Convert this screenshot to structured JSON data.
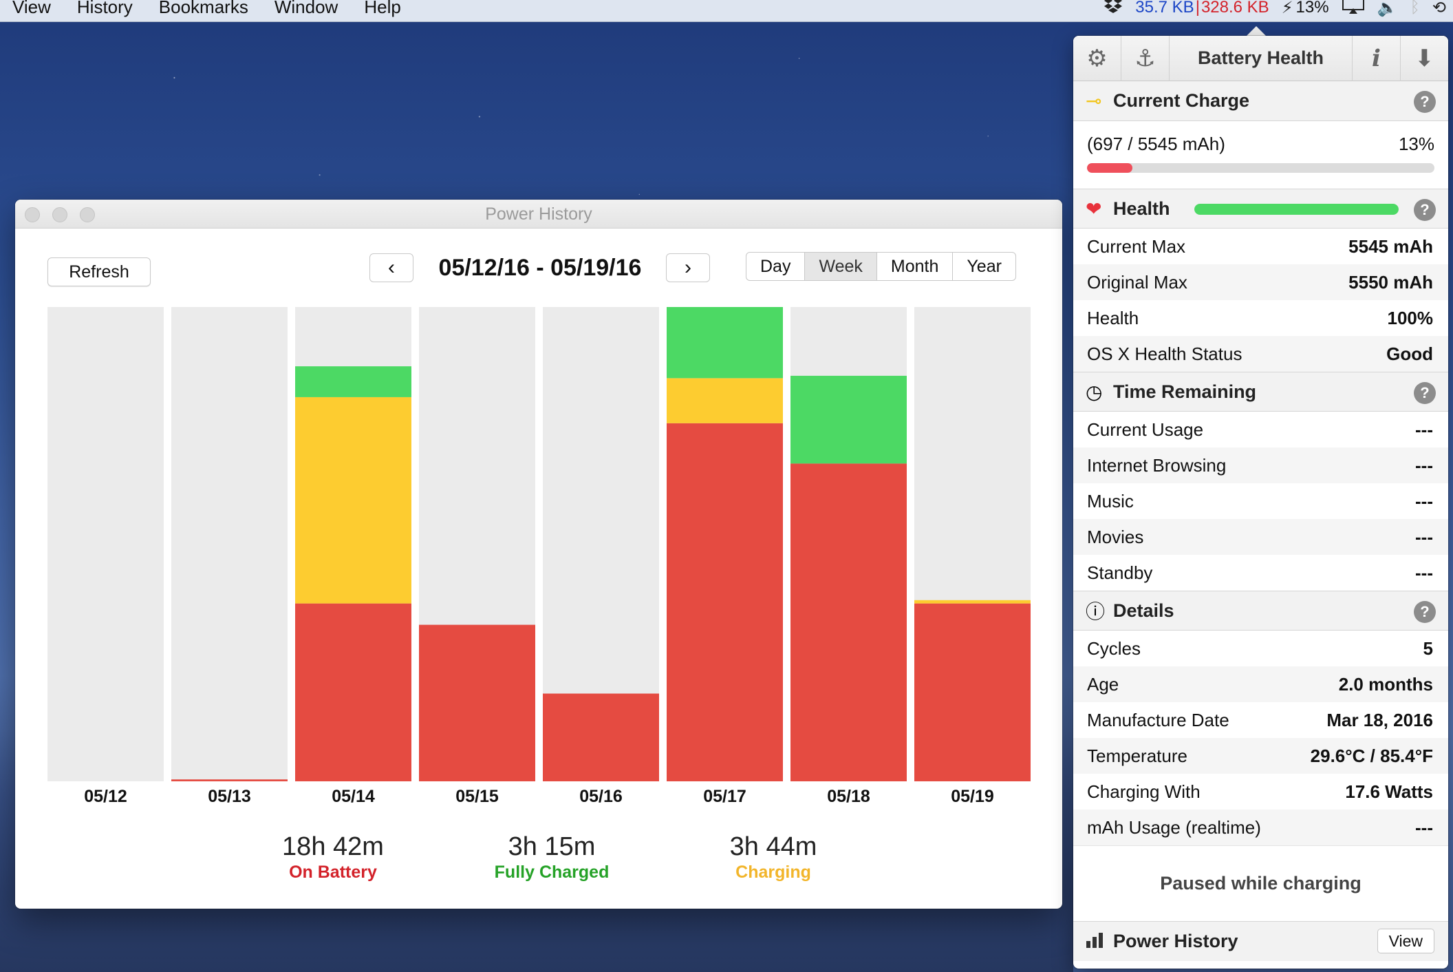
{
  "menubar": {
    "items": [
      "View",
      "History",
      "Bookmarks",
      "Window",
      "Help"
    ],
    "status": {
      "net_up": "35.7 KB",
      "separator": "|",
      "net_down": "328.6 KB",
      "battery_percent": "13%",
      "icons": [
        "dropbox-icon",
        "bolt-icon",
        "airplay-icon",
        "volume-icon",
        "bluetooth-icon",
        "time-machine-icon"
      ]
    }
  },
  "window": {
    "title": "Power History",
    "refresh_label": "Refresh",
    "prev_label": "‹",
    "next_label": "›",
    "range_label": "05/12/16 - 05/19/16",
    "periods": [
      "Day",
      "Week",
      "Month",
      "Year"
    ],
    "active_period": "Week"
  },
  "chart_data": {
    "type": "bar",
    "stacked": true,
    "categories": [
      "05/12",
      "05/13",
      "05/14",
      "05/15",
      "05/16",
      "05/17",
      "05/18",
      "05/19"
    ],
    "ylim": [
      0,
      100
    ],
    "series": [
      {
        "name": "On Battery",
        "color": "#e54b41",
        "values": [
          0,
          0.4,
          37.5,
          33,
          18.5,
          75.5,
          67,
          37.5
        ]
      },
      {
        "name": "Charging",
        "color": "#fdcc30",
        "values": [
          0,
          0,
          43.5,
          0,
          0,
          9.5,
          0,
          0.7
        ]
      },
      {
        "name": "Fully Charged",
        "color": "#4cd964",
        "values": [
          0,
          0,
          6.5,
          0,
          0,
          15,
          18.5,
          0
        ]
      }
    ],
    "background_color": "#ebebeb"
  },
  "summary": [
    {
      "duration": "18h 42m",
      "label": "On Battery",
      "color": "#d3222a"
    },
    {
      "duration": "3h 15m",
      "label": "Fully Charged",
      "color": "#25a227"
    },
    {
      "duration": "3h 44m",
      "label": "Charging",
      "color": "#f2b52a"
    }
  ],
  "panel": {
    "title": "Battery Health",
    "current_charge": {
      "title": "Current Charge",
      "mah_text": "(697 / 5545 mAh)",
      "percent_text": "13%",
      "percent": 13
    },
    "health": {
      "title": "Health",
      "percent": 100,
      "rows": [
        {
          "label": "Current Max",
          "value": "5545 mAh"
        },
        {
          "label": "Original Max",
          "value": "5550 mAh"
        },
        {
          "label": "Health",
          "value": "100%"
        },
        {
          "label": "OS X Health Status",
          "value": "Good"
        }
      ]
    },
    "time_remaining": {
      "title": "Time Remaining",
      "rows": [
        {
          "label": "Current Usage",
          "value": "---"
        },
        {
          "label": "Internet Browsing",
          "value": "---"
        },
        {
          "label": "Music",
          "value": "---"
        },
        {
          "label": "Movies",
          "value": "---"
        },
        {
          "label": "Standby",
          "value": "---"
        }
      ]
    },
    "details": {
      "title": "Details",
      "rows": [
        {
          "label": "Cycles",
          "value": "5"
        },
        {
          "label": "Age",
          "value": "2.0 months"
        },
        {
          "label": "Manufacture Date",
          "value": "Mar 18, 2016"
        },
        {
          "label": "Temperature",
          "value": "29.6°C / 85.4°F"
        },
        {
          "label": "Charging With",
          "value": "17.6 Watts"
        },
        {
          "label": "mAh Usage (realtime)",
          "value": "---"
        }
      ]
    },
    "paused_text": "Paused while charging",
    "footer": {
      "title": "Power History",
      "view_label": "View"
    },
    "help_label": "?"
  }
}
